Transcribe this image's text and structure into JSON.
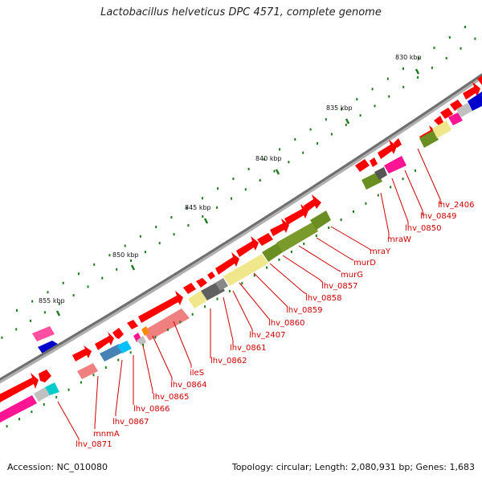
{
  "title": "Lactobacillus helveticus DPC 4571, complete genome",
  "footer": {
    "accession": "Accession: NC_010080",
    "summary": "Topology: circular; Length: 2,080,931 bp; Genes: 1,683"
  },
  "kbp_ticks": [
    "830 kbp",
    "835 kbp",
    "840 kbp",
    "845 kbp",
    "850 kbp",
    "855 kbp"
  ],
  "gene_labels": [
    "lhv_2406",
    "lhv_0849",
    "lhv_0850",
    "mraW",
    "mraY",
    "murD",
    "murG",
    "lhv_0857",
    "lhv_0858",
    "lhv_0859",
    "lhv_0860",
    "lhv_2407",
    "lhv_0861",
    "lhv_0862",
    "ileS",
    "lhv_0864",
    "lhv_0865",
    "lhv_0866",
    "lhv_0867",
    "mnmA",
    "lhv_0871"
  ],
  "colors": {
    "backbone": "#808080",
    "gene": "#ff0000",
    "gene_light": "#f08080",
    "pink": "#ff1493",
    "magenta": "#ff4fa0",
    "blue": "#0000cc",
    "steelblue": "#4682b4",
    "cyan": "#00bfff",
    "khaki": "#f0e68c",
    "olive": "#6b8e23",
    "gray_gene": "#555555",
    "lightgray": "#c0c0c0",
    "gc_dot": "#1f7a1f"
  }
}
